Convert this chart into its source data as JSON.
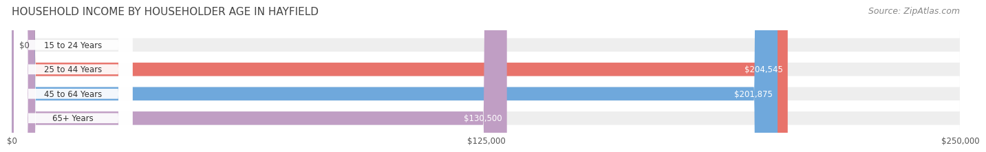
{
  "title": "HOUSEHOLD INCOME BY HOUSEHOLDER AGE IN HAYFIELD",
  "source": "Source: ZipAtlas.com",
  "categories": [
    "15 to 24 Years",
    "25 to 44 Years",
    "45 to 64 Years",
    "65+ Years"
  ],
  "values": [
    0,
    204545,
    201875,
    130500
  ],
  "labels": [
    "$0",
    "$204,545",
    "$201,875",
    "$130,500"
  ],
  "bar_colors": [
    "#f5c89a",
    "#e8736b",
    "#6fa8dc",
    "#c09ec4"
  ],
  "bar_bg_color": "#eeeeee",
  "xlim": [
    0,
    250000
  ],
  "xticks": [
    0,
    125000,
    250000
  ],
  "xtick_labels": [
    "$0",
    "$125,000",
    "$250,000"
  ],
  "title_fontsize": 11,
  "source_fontsize": 9,
  "bar_height": 0.55,
  "background_color": "#ffffff",
  "label_color_inside": "#ffffff",
  "label_color_outside": "#555555",
  "grid_color": "#cccccc"
}
